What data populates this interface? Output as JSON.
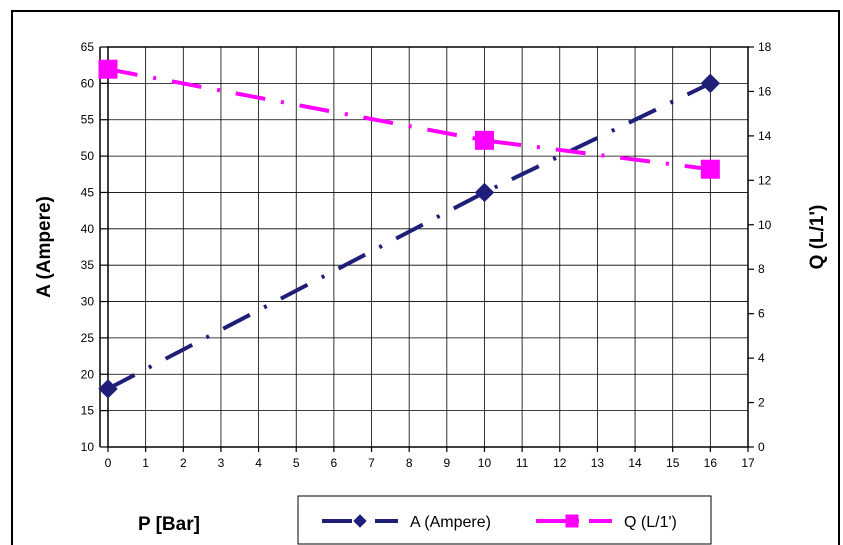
{
  "chart_data": {
    "type": "line",
    "x_axis": {
      "label": "P [Bar]",
      "min": 0,
      "max": 17,
      "ticks": [
        0,
        1,
        2,
        3,
        4,
        5,
        6,
        7,
        8,
        9,
        10,
        11,
        12,
        13,
        14,
        15,
        16,
        17
      ]
    },
    "y_axis_left": {
      "label": "A (Ampere)",
      "min": 10,
      "max": 65,
      "ticks": [
        10,
        15,
        20,
        25,
        30,
        35,
        40,
        45,
        50,
        55,
        60,
        65
      ]
    },
    "y_axis_right": {
      "label": "Q (L/1')",
      "min": 0,
      "max": 18,
      "ticks": [
        0,
        2,
        4,
        6,
        8,
        10,
        12,
        14,
        16,
        18
      ]
    },
    "grid": true,
    "legend_position": "bottom",
    "series": [
      {
        "name": "A (Ampere)",
        "axis": "left",
        "color": "#1f1f7a",
        "marker": "diamond",
        "line_style": "dash-dot",
        "x": [
          0,
          10,
          16
        ],
        "y": [
          18,
          45,
          60
        ]
      },
      {
        "name": "Q (L/1')",
        "axis": "right",
        "color": "#ff00ff",
        "marker": "square",
        "line_style": "dash-dot",
        "x": [
          0,
          10,
          16
        ],
        "y": [
          17,
          13.8,
          12.5
        ]
      }
    ]
  }
}
